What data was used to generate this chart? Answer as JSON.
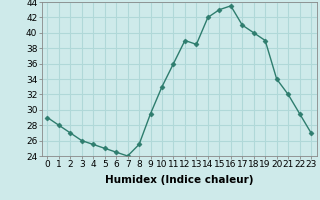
{
  "x": [
    0,
    1,
    2,
    3,
    4,
    5,
    6,
    7,
    8,
    9,
    10,
    11,
    12,
    13,
    14,
    15,
    16,
    17,
    18,
    19,
    20,
    21,
    22,
    23
  ],
  "y": [
    29,
    28,
    27,
    26,
    25.5,
    25,
    24.5,
    24,
    25.5,
    29.5,
    33,
    36,
    39,
    38.5,
    42,
    43,
    43.5,
    41,
    40,
    39,
    34,
    32,
    29.5,
    27
  ],
  "line_color": "#2e7d6e",
  "marker": "D",
  "marker_size": 2.5,
  "linewidth": 1.0,
  "bg_color": "#ceeaea",
  "grid_color": "#b0d8d8",
  "xlabel": "Humidex (Indice chaleur)",
  "ylim": [
    24,
    44
  ],
  "xlim": [
    -0.5,
    23.5
  ],
  "yticks": [
    24,
    26,
    28,
    30,
    32,
    34,
    36,
    38,
    40,
    42,
    44
  ],
  "xticks": [
    0,
    1,
    2,
    3,
    4,
    5,
    6,
    7,
    8,
    9,
    10,
    11,
    12,
    13,
    14,
    15,
    16,
    17,
    18,
    19,
    20,
    21,
    22,
    23
  ],
  "xlabel_fontsize": 7.5,
  "tick_fontsize": 6.5
}
